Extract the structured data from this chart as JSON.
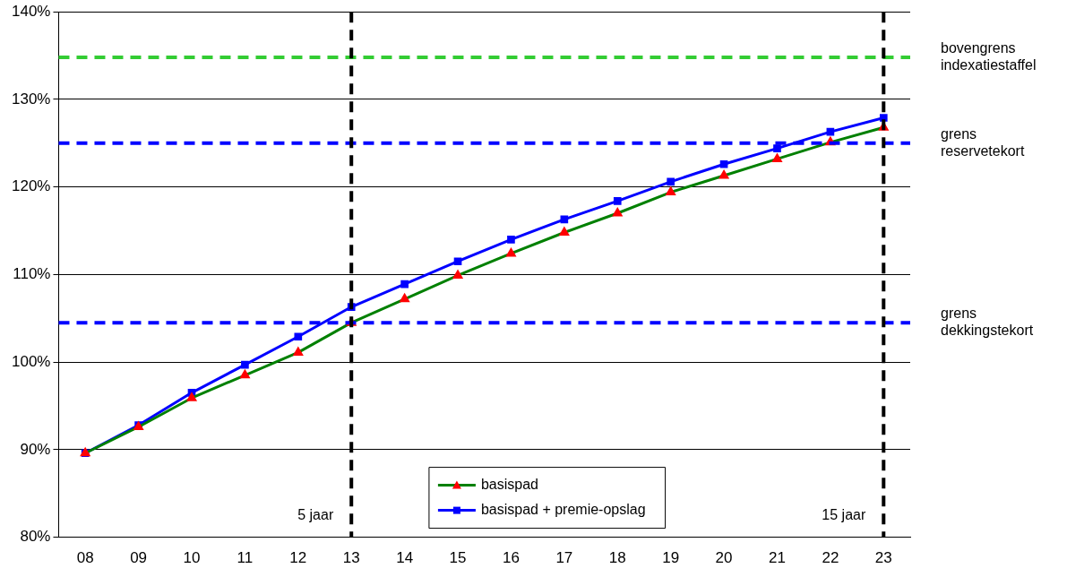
{
  "chart_data": {
    "type": "line",
    "categories": [
      "08",
      "09",
      "10",
      "11",
      "12",
      "13",
      "14",
      "15",
      "16",
      "17",
      "18",
      "19",
      "20",
      "21",
      "22",
      "23"
    ],
    "series": [
      {
        "name": "basispad",
        "color": "#008000",
        "marker": "triangle",
        "colors": [
          "#ff0000",
          "#ff0000",
          "#ff0000",
          "#ff0000",
          "#ff0000",
          "#ff0000",
          "#ff0000",
          "#ff0000",
          "#ff0000",
          "#ff0000",
          "#ff0000",
          "#ff0000",
          "#ff0000",
          "#ff0000",
          "#ff0000",
          "#ff0000"
        ],
        "values": [
          89.6,
          92.6,
          95.9,
          98.5,
          101.1,
          104.5,
          107.2,
          109.9,
          112.4,
          114.8,
          117.0,
          119.4,
          121.3,
          123.2,
          125.1,
          126.8
        ]
      },
      {
        "name": "basispad + premie-opslag",
        "color": "#0000ff",
        "marker": "square",
        "values": [
          89.6,
          92.8,
          96.5,
          99.7,
          102.9,
          106.3,
          108.9,
          111.5,
          114.0,
          116.3,
          118.4,
          120.6,
          122.6,
          124.4,
          126.3,
          127.9
        ]
      }
    ],
    "ylim": [
      80,
      140
    ],
    "yticks": [
      {
        "value": 80,
        "label": "80%"
      },
      {
        "value": 90,
        "label": "90%"
      },
      {
        "value": 100,
        "label": "100%"
      },
      {
        "value": 110,
        "label": "110%"
      },
      {
        "value": 120,
        "label": "120%"
      },
      {
        "value": 130,
        "label": "130%"
      },
      {
        "value": 140,
        "label": "140%"
      }
    ],
    "grid": "y",
    "legend": "bottom",
    "line_style": "solid",
    "ref_lines": [
      {
        "axis": "y",
        "value": 134.8,
        "label": "bovengrens\nindexatiestaffel",
        "color": "#33cc33",
        "line_style": "dashed"
      },
      {
        "axis": "y",
        "value": 125.0,
        "label": "grens\nreservetekort",
        "color": "#0000ff",
        "line_style": "dashed"
      },
      {
        "axis": "y",
        "value": 104.5,
        "label": "grens\ndekkingstekort",
        "color": "#0000ff",
        "line_style": "dashed"
      },
      {
        "axis": "x",
        "value": "13",
        "label": "5 jaar",
        "color": "#000000",
        "line_style": "dashed"
      },
      {
        "axis": "x",
        "value": "23",
        "label": "15 jaar",
        "color": "#000000",
        "line_style": "dashed"
      }
    ]
  }
}
